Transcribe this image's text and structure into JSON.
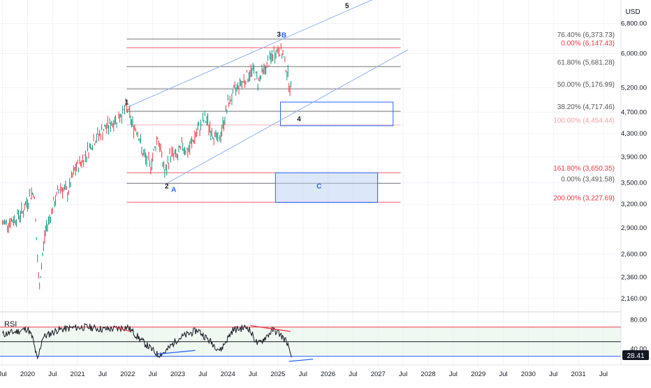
{
  "axis": {
    "currency": "USD",
    "price_ticks": [
      {
        "label": "6,800.00",
        "value": 6800
      },
      {
        "label": "6,000.00",
        "value": 6000
      },
      {
        "label": "5,200.00",
        "value": 5200
      },
      {
        "label": "4,700.00",
        "value": 4700
      },
      {
        "label": "4,300.00",
        "value": 4300
      },
      {
        "label": "3,900.00",
        "value": 3900
      },
      {
        "label": "3,500.00",
        "value": 3500
      },
      {
        "label": "3,200.00",
        "value": 3200
      },
      {
        "label": "2,900.00",
        "value": 2900
      },
      {
        "label": "2,600.00",
        "value": 2600
      },
      {
        "label": "2,360.00",
        "value": 2360
      },
      {
        "label": "2,160.00",
        "value": 2160
      }
    ],
    "rsi_ticks": [
      {
        "label": "80.00",
        "value": 80
      },
      {
        "label": "40.00",
        "value": 40
      }
    ],
    "time_ticks": [
      {
        "label": "Jul",
        "value": 2019.5
      },
      {
        "label": "2020",
        "value": 2020.0
      },
      {
        "label": "Jul",
        "value": 2020.5
      },
      {
        "label": "2021",
        "value": 2021.0
      },
      {
        "label": "Jul",
        "value": 2021.5
      },
      {
        "label": "2022",
        "value": 2022.0
      },
      {
        "label": "Jul",
        "value": 2022.5
      },
      {
        "label": "2023",
        "value": 2023.0
      },
      {
        "label": "Jul",
        "value": 2023.5
      },
      {
        "label": "2024",
        "value": 2024.0
      },
      {
        "label": "Jul",
        "value": 2024.5
      },
      {
        "label": "2025",
        "value": 2025.0
      },
      {
        "label": "Jul",
        "value": 2025.5
      },
      {
        "label": "2026",
        "value": 2026.0
      },
      {
        "label": "Jul",
        "value": 2026.5
      },
      {
        "label": "2027",
        "value": 2027.0
      },
      {
        "label": "Jul",
        "value": 2027.5
      },
      {
        "label": "2028",
        "value": 2028.0
      },
      {
        "label": "Jul",
        "value": 2028.5
      },
      {
        "label": "2029",
        "value": 2029.0
      },
      {
        "label": "Jul",
        "value": 2029.5
      },
      {
        "label": "2030",
        "value": 2030.0
      },
      {
        "label": "Jul",
        "value": 2030.5
      },
      {
        "label": "2031",
        "value": 2031.0
      },
      {
        "label": "Jul",
        "value": 2031.5
      }
    ]
  },
  "fib_levels": [
    {
      "label": "76.40% (6,373.73)",
      "price": 6373.73,
      "color": "#555555"
    },
    {
      "label": "0.00% (6,147.43)",
      "price": 6147.43,
      "color": "#f23645"
    },
    {
      "label": "61.80% (5,681.28)",
      "price": 5681.28,
      "color": "#555555"
    },
    {
      "label": "50.00% (5,176.99)",
      "price": 5176.99,
      "color": "#555555"
    },
    {
      "label": "38.20% (4,717.46)",
      "price": 4717.46,
      "color": "#555555"
    },
    {
      "label": "100.00% (4,454.44)",
      "price": 4454.44,
      "color": "#f7a1a8"
    },
    {
      "label": "161.80% (3,650.35)",
      "price": 3650.35,
      "color": "#f23645"
    },
    {
      "label": "0.00% (3,491.58)",
      "price": 3491.58,
      "color": "#555555"
    },
    {
      "label": "200.00% (3,227.69)",
      "price": 3227.69,
      "color": "#f23645"
    }
  ],
  "wave_labels": [
    {
      "text": "1",
      "t": 2021.98,
      "price": 4850,
      "color": "#131722"
    },
    {
      "text": "2",
      "t": 2022.78,
      "price": 3420,
      "color": "#131722"
    },
    {
      "text": "A",
      "t": 2022.92,
      "price": 3370,
      "color": "#2962ff"
    },
    {
      "text": "3",
      "t": 2025.02,
      "price": 6440,
      "color": "#131722"
    },
    {
      "text": "B",
      "t": 2025.12,
      "price": 6420,
      "color": "#2962ff"
    },
    {
      "text": "4",
      "t": 2025.42,
      "price": 4520,
      "color": "#131722"
    },
    {
      "text": "5",
      "t": 2026.38,
      "price": 7250,
      "color": "#131722"
    },
    {
      "text": "C",
      "t": 2025.82,
      "price": 3420,
      "color": "#2962ff"
    }
  ],
  "zones": [
    {
      "name": "wave-4-target-box",
      "t0": 2025.05,
      "t1": 2027.3,
      "p_top": 4900,
      "p_bottom": 4440
    },
    {
      "name": "wave-c-target-box",
      "t0": 2024.95,
      "t1": 2026.99,
      "p_top": 3650,
      "p_bottom": 3225
    }
  ],
  "trendlines": [
    {
      "name": "upper-channel-line",
      "t0": 2022.0,
      "p0": 4800,
      "t1": 2027.3,
      "p1": 7800
    },
    {
      "name": "lower-channel-line",
      "t0": 2022.8,
      "p0": 3500,
      "t1": 2027.6,
      "p1": 6100
    }
  ],
  "chart_data": {
    "type": "line",
    "subtype": "candlestick-approximated",
    "x_unit": "year",
    "price_scale": "log",
    "price_range": [
      2050,
      7500
    ],
    "x_range": [
      2019.45,
      2031.85
    ],
    "x": [
      2019.5,
      2019.7,
      2019.9,
      2020.05,
      2020.13,
      2020.19,
      2020.23,
      2020.35,
      2020.5,
      2020.65,
      2020.8,
      2020.95,
      2021.1,
      2021.3,
      2021.5,
      2021.7,
      2021.85,
      2021.99,
      2022.1,
      2022.2,
      2022.3,
      2022.45,
      2022.6,
      2022.75,
      2022.85,
      2023.0,
      2023.1,
      2023.2,
      2023.4,
      2023.55,
      2023.7,
      2023.82,
      2024.0,
      2024.2,
      2024.35,
      2024.5,
      2024.6,
      2024.7,
      2024.85,
      2024.95,
      2025.03,
      2025.1,
      2025.18,
      2025.27
    ],
    "close": [
      2950,
      2990,
      3100,
      3320,
      3380,
      2650,
      2250,
      2850,
      3150,
      3450,
      3350,
      3700,
      3850,
      4150,
      4350,
      4500,
      4650,
      4780,
      4450,
      4350,
      3950,
      3750,
      4250,
      3620,
      3950,
      3900,
      4100,
      3980,
      4350,
      4580,
      4300,
      4150,
      4850,
      5250,
      5400,
      5600,
      5350,
      5550,
      5850,
      6050,
      6100,
      5950,
      5600,
      5050
    ],
    "series": [
      {
        "name": "RSI",
        "x": [
          2019.5,
          2019.8,
          2020.0,
          2020.1,
          2020.2,
          2020.3,
          2020.6,
          2020.9,
          2021.2,
          2021.5,
          2021.8,
          2022.0,
          2022.3,
          2022.6,
          2022.75,
          2023.0,
          2023.4,
          2023.7,
          2023.85,
          2024.1,
          2024.4,
          2024.6,
          2024.9,
          2025.0,
          2025.2,
          2025.27
        ],
        "values": [
          60,
          64,
          68,
          55,
          24,
          56,
          66,
          69,
          70,
          67,
          68,
          70,
          50,
          32,
          36,
          54,
          66,
          47,
          38,
          66,
          70,
          46,
          66,
          63,
          48,
          28.41
        ]
      }
    ],
    "rsi_ylim": [
      20,
      90
    ],
    "rsi_levels": [
      70,
      50,
      30
    ],
    "last_rsi": "28.41",
    "rsi_label": "RSI",
    "rsi_divergence_lines": [
      {
        "t0": 2021.75,
        "v0": 70,
        "t1": 2022.05,
        "v1": 64,
        "color": "#f23645"
      },
      {
        "t0": 2022.6,
        "v0": 33,
        "t1": 2023.35,
        "v1": 38,
        "color": "#2962ff"
      },
      {
        "t0": 2024.45,
        "v0": 72,
        "t1": 2025.25,
        "v1": 64,
        "color": "#f23645"
      },
      {
        "t0": 2025.22,
        "v0": 23,
        "t1": 2025.7,
        "v1": 26,
        "color": "#2962ff"
      }
    ]
  },
  "colors": {
    "candle": "#089981",
    "accent": "#2962ff",
    "fib_neutral": "#555555",
    "fib_red": "#f23645",
    "fib_pink": "#f7a1a8",
    "zone_fill": "#bbd0f5",
    "zone_stroke": "#2962ff",
    "rsi_line": "#131722",
    "rsi_band": "#e6f4ea"
  }
}
